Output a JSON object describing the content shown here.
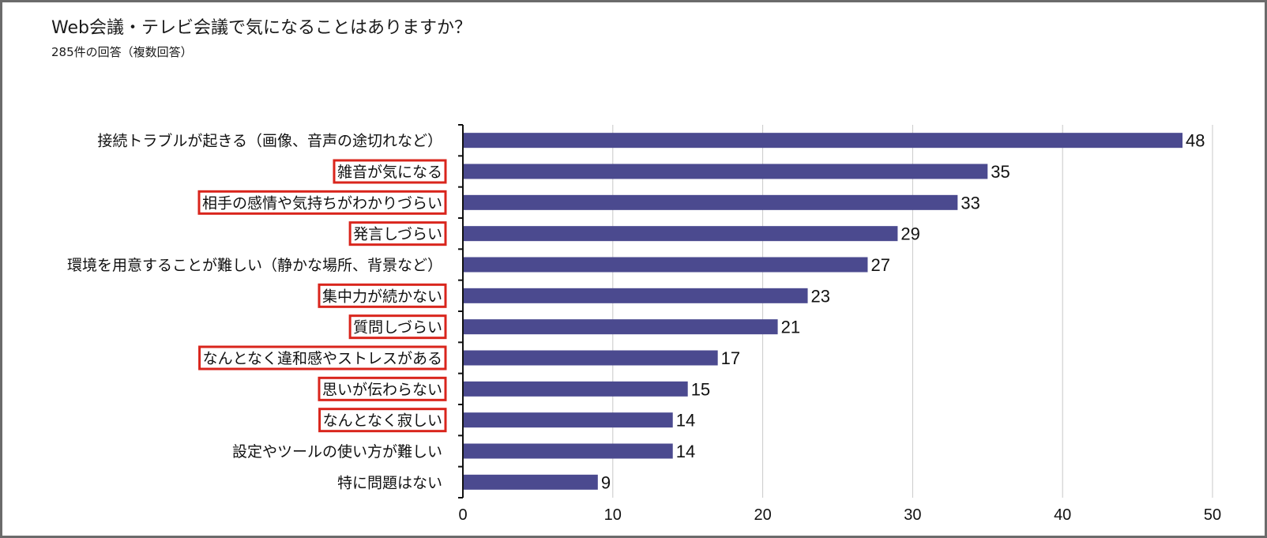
{
  "chart_data": {
    "type": "bar",
    "orientation": "horizontal",
    "title": "Web会議・テレビ会議で気になることはありますか？",
    "subtitle": "285件の回答（複数回答）",
    "categories": [
      "接続トラブルが起きる（画像、音声の途切れなど）",
      "雑音が気になる",
      "相手の感情や気持ちがわかりづらい",
      "発言しづらい",
      "環境を用意することが難しい（静かな場所、背景など）",
      "集中力が続かない",
      "質問しづらい",
      "なんとなく違和感やストレスがある",
      "思いが伝わらない",
      "なんとなく寂しい",
      "設定やツールの使い方が難しい",
      "特に問題はない"
    ],
    "values": [
      48,
      35,
      33,
      29,
      27,
      23,
      21,
      17,
      15,
      14,
      14,
      9
    ],
    "highlighted": [
      false,
      true,
      true,
      true,
      false,
      true,
      true,
      true,
      true,
      true,
      false,
      false
    ],
    "xlim": [
      0,
      50
    ],
    "xticks": [
      0,
      10,
      20,
      30,
      40,
      50
    ],
    "grid": true,
    "bar_color": "#4b4a8f",
    "highlight_color": "#d9251c",
    "gridline_color": "#c8c8c8"
  }
}
